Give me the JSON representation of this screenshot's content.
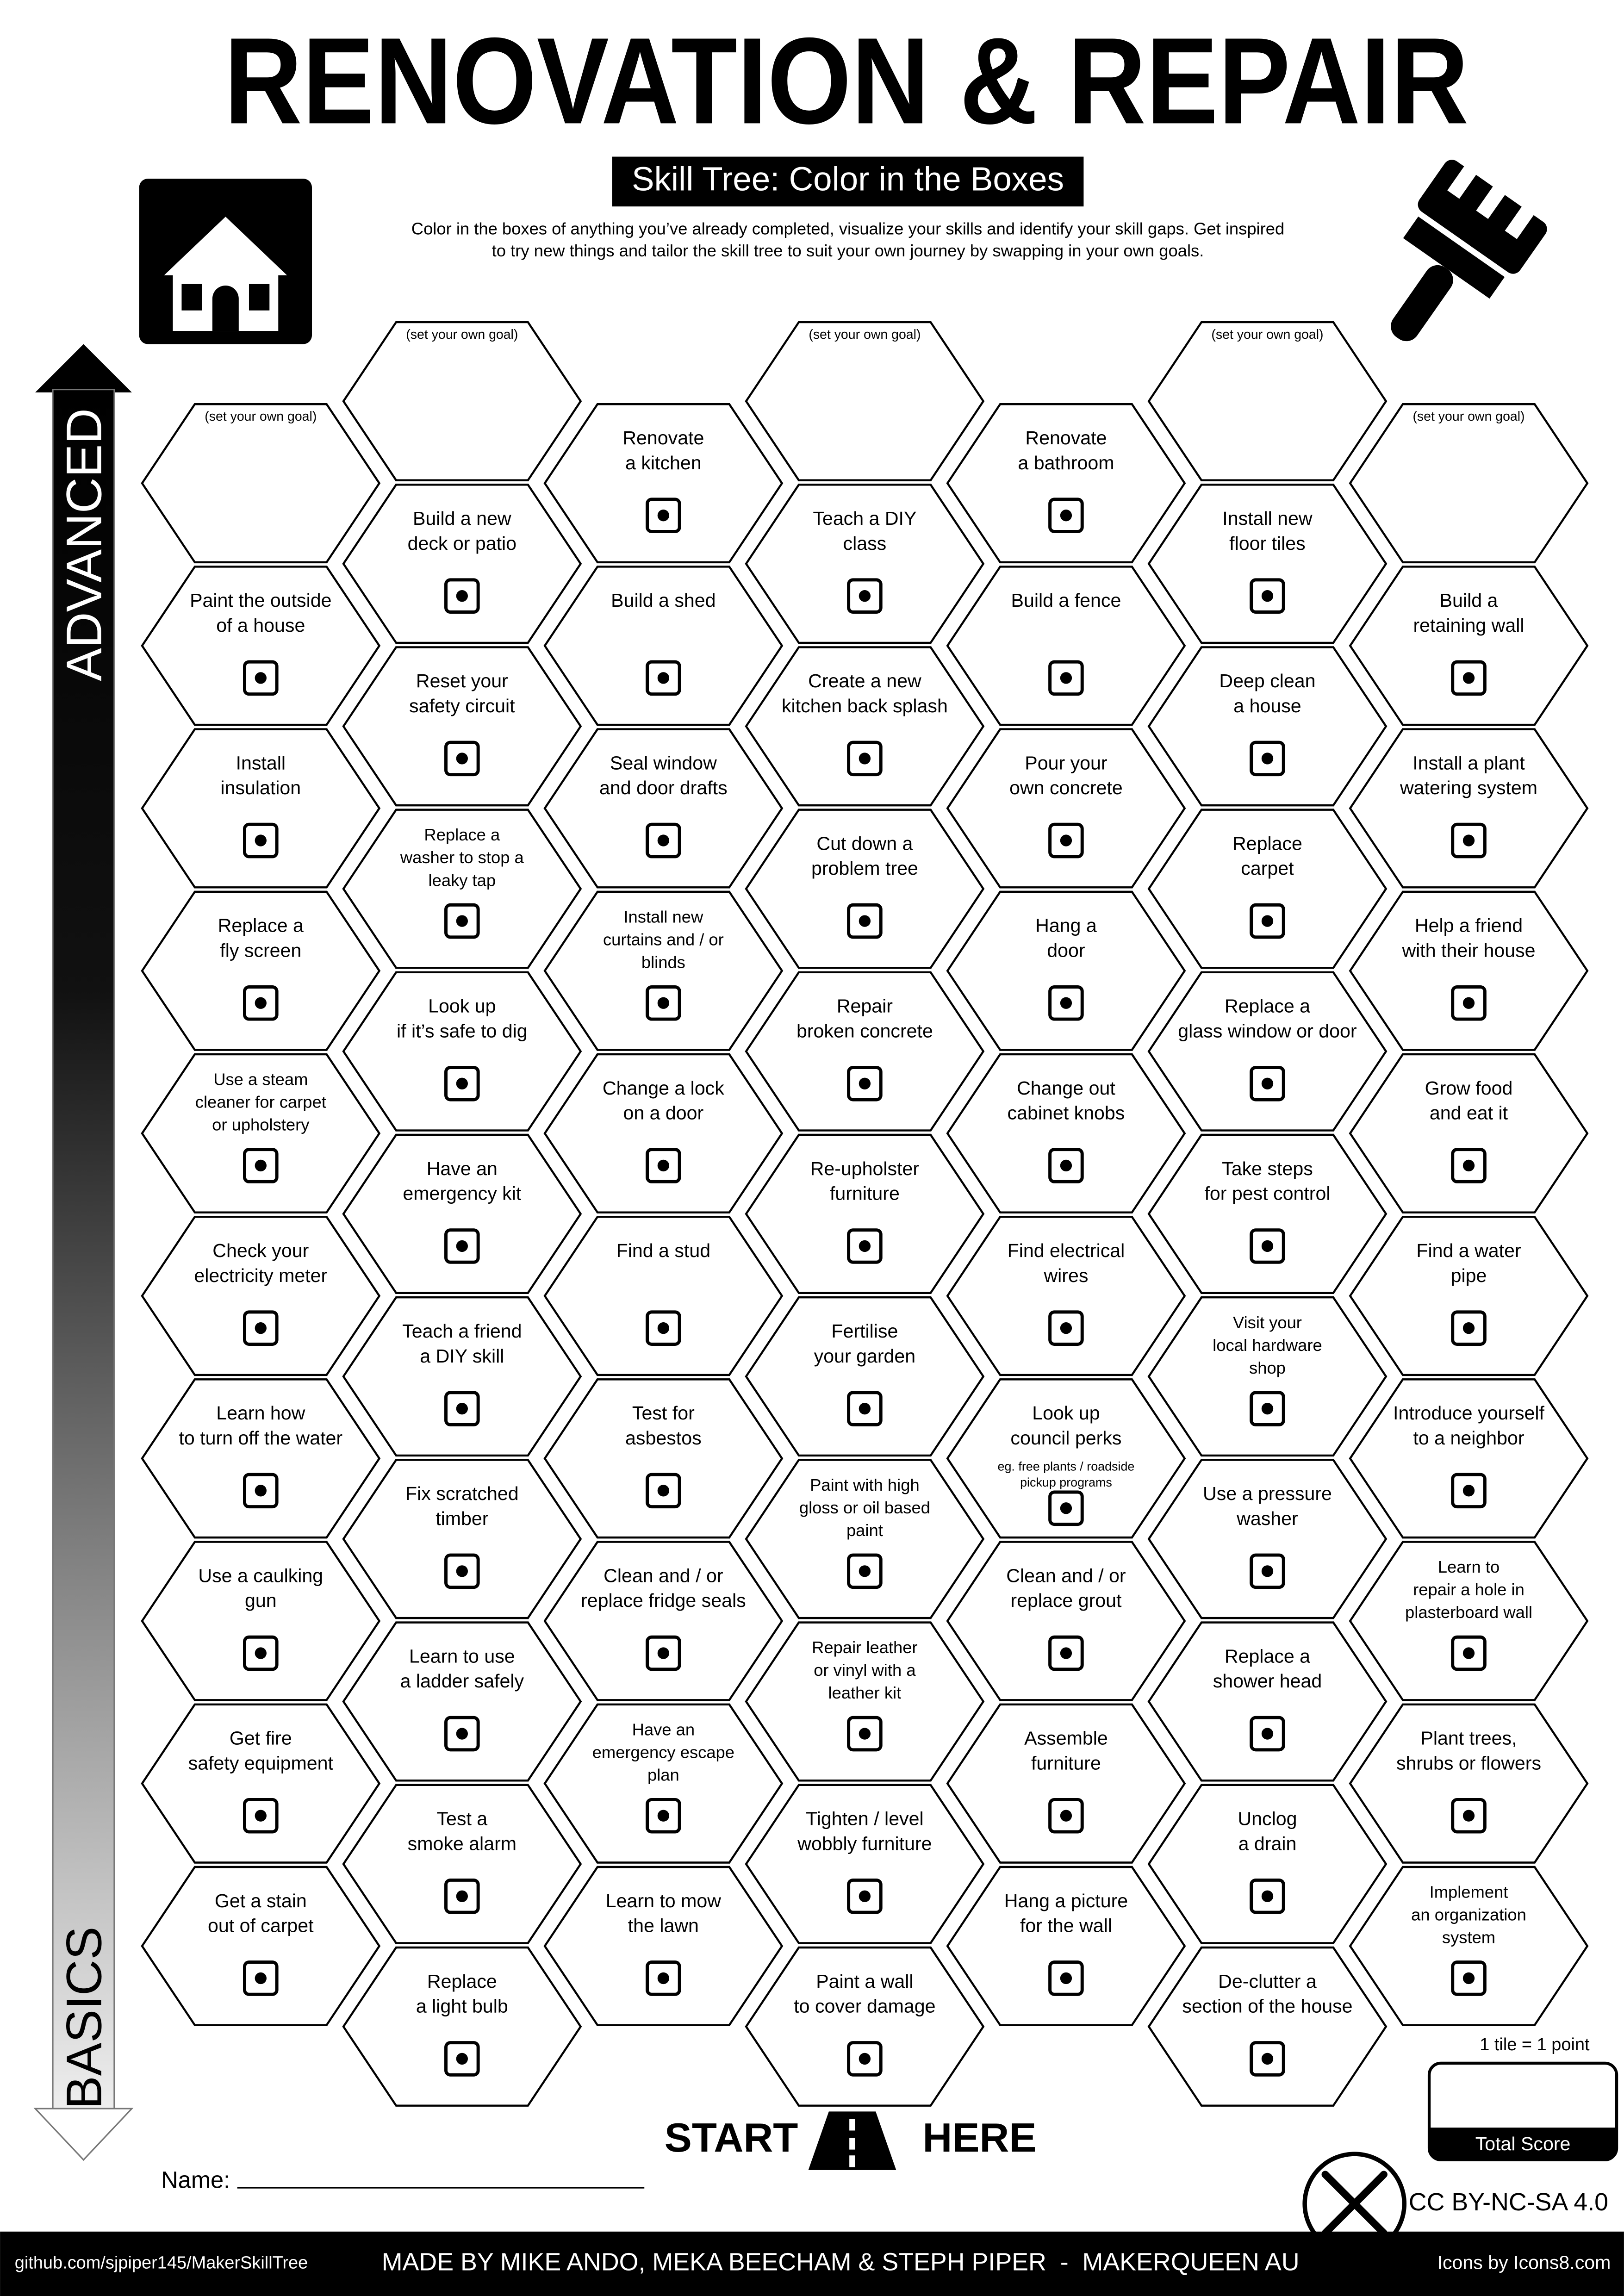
{
  "header": {
    "title": "RENOVATION & REPAIR",
    "subtitle": "Skill Tree: Color in the Boxes",
    "intro": [
      "Color in the boxes of anything you’ve already completed, visualize your skills and identify your skill gaps.  Get inspired",
      "to try new things and tailor the skill tree to suit your own journey by swapping in your own goals."
    ]
  },
  "axis": {
    "top": "ADVANCED",
    "bottom": "BASICS"
  },
  "columns": [
    [
      {
        "lines": [
          "(set your own goal)"
        ]
      },
      {
        "lines": [
          "Paint the outside",
          "of a house"
        ]
      },
      {
        "lines": [
          "Install",
          "insulation"
        ]
      },
      {
        "lines": [
          "Replace a",
          "fly screen"
        ]
      },
      {
        "lines": [
          "Use a steam",
          "cleaner for carpet",
          "or upholstery"
        ]
      },
      {
        "lines": [
          "Check your",
          "electricity meter"
        ]
      },
      {
        "lines": [
          "Learn how",
          "to turn off the water"
        ]
      },
      {
        "lines": [
          "Use a caulking",
          "gun"
        ]
      },
      {
        "lines": [
          "Get fire",
          "safety equipment"
        ]
      },
      {
        "lines": [
          "Get a stain",
          "out of carpet"
        ]
      }
    ],
    [
      {
        "lines": [
          "(set your own goal)"
        ]
      },
      {
        "lines": [
          "Build a new",
          "deck or patio"
        ]
      },
      {
        "lines": [
          "Reset your",
          "safety circuit"
        ]
      },
      {
        "lines": [
          "Replace a",
          "washer to stop a",
          "leaky tap"
        ]
      },
      {
        "lines": [
          "Look up",
          "if it’s safe to dig"
        ]
      },
      {
        "lines": [
          "Have an",
          "emergency kit"
        ]
      },
      {
        "lines": [
          "Teach a friend",
          "a DIY skill"
        ]
      },
      {
        "lines": [
          "Fix scratched",
          "timber"
        ]
      },
      {
        "lines": [
          "Learn to use",
          "a ladder safely"
        ]
      },
      {
        "lines": [
          "Test a",
          "smoke alarm"
        ]
      },
      {
        "lines": [
          "Replace",
          "a light bulb"
        ]
      }
    ],
    [
      {
        "lines": [
          "Renovate",
          "a kitchen"
        ]
      },
      {
        "lines": [
          "Build a shed"
        ]
      },
      {
        "lines": [
          "Seal window",
          "and door drafts"
        ]
      },
      {
        "lines": [
          "Install new",
          "curtains and / or",
          "blinds"
        ]
      },
      {
        "lines": [
          "Change a lock",
          "on a door"
        ]
      },
      {
        "lines": [
          "Find a stud"
        ]
      },
      {
        "lines": [
          "Test for",
          "asbestos"
        ]
      },
      {
        "lines": [
          "Clean and / or",
          "replace fridge seals"
        ]
      },
      {
        "lines": [
          "Have an",
          "emergency escape",
          "plan"
        ]
      },
      {
        "lines": [
          "Learn to mow",
          "the lawn"
        ]
      }
    ],
    [
      {
        "lines": [
          "(set your own goal)"
        ]
      },
      {
        "lines": [
          "Teach a DIY",
          "class"
        ]
      },
      {
        "lines": [
          "Create a new",
          "kitchen back splash"
        ]
      },
      {
        "lines": [
          "Cut down a",
          "problem tree"
        ]
      },
      {
        "lines": [
          "Repair",
          "broken concrete"
        ]
      },
      {
        "lines": [
          "Re-upholster",
          "furniture"
        ]
      },
      {
        "lines": [
          "Fertilise",
          "your garden"
        ]
      },
      {
        "lines": [
          "Paint with high",
          "gloss or oil based",
          "paint"
        ]
      },
      {
        "lines": [
          "Repair leather",
          "or vinyl with a",
          "leather kit"
        ]
      },
      {
        "lines": [
          "Tighten / level",
          "wobbly furniture"
        ]
      },
      {
        "lines": [
          "Paint a wall",
          "to cover damage"
        ]
      }
    ],
    [
      {
        "lines": [
          "Renovate",
          "a bathroom"
        ]
      },
      {
        "lines": [
          "Build a fence"
        ]
      },
      {
        "lines": [
          "Pour your",
          "own concrete"
        ]
      },
      {
        "lines": [
          "Hang a",
          "door"
        ]
      },
      {
        "lines": [
          "Change out",
          "cabinet knobs"
        ]
      },
      {
        "lines": [
          "Find electrical",
          "wires"
        ]
      },
      {
        "lines": [
          "Look up",
          "council perks"
        ],
        "note": [
          "eg. free plants / roadside",
          "pickup programs"
        ]
      },
      {
        "lines": [
          "Clean and / or",
          "replace grout"
        ]
      },
      {
        "lines": [
          "Assemble",
          "furniture"
        ]
      },
      {
        "lines": [
          "Hang a picture",
          "for the wall"
        ]
      }
    ],
    [
      {
        "lines": [
          "(set your own goal)"
        ]
      },
      {
        "lines": [
          "Install new",
          "floor tiles"
        ]
      },
      {
        "lines": [
          "Deep clean",
          "a house"
        ]
      },
      {
        "lines": [
          "Replace",
          "carpet"
        ]
      },
      {
        "lines": [
          "Replace a",
          "glass window or door"
        ]
      },
      {
        "lines": [
          "Take steps",
          "for pest control"
        ]
      },
      {
        "lines": [
          "Visit your",
          "local hardware",
          "shop"
        ]
      },
      {
        "lines": [
          "Use a pressure",
          "washer"
        ]
      },
      {
        "lines": [
          "Replace a",
          "shower head"
        ]
      },
      {
        "lines": [
          "Unclog",
          "a drain"
        ]
      },
      {
        "lines": [
          "De-clutter a",
          "section of the house"
        ]
      }
    ],
    [
      {
        "lines": [
          "(set your own goal)"
        ]
      },
      {
        "lines": [
          "Build a",
          "retaining wall"
        ]
      },
      {
        "lines": [
          "Install a plant",
          "watering system"
        ]
      },
      {
        "lines": [
          "Help a friend",
          "with their house"
        ]
      },
      {
        "lines": [
          "Grow food",
          "and eat it"
        ]
      },
      {
        "lines": [
          "Find a water",
          "pipe"
        ]
      },
      {
        "lines": [
          "Introduce yourself",
          "to a neighbor"
        ]
      },
      {
        "lines": [
          "Learn to",
          "repair a hole in",
          "plasterboard wall"
        ]
      },
      {
        "lines": [
          "Plant trees,",
          "shrubs or flowers"
        ]
      },
      {
        "lines": [
          "Implement",
          "an organization",
          "system"
        ]
      }
    ]
  ],
  "start": "START",
  "here": "HERE",
  "name_label": "Name:",
  "score": {
    "rule": "1 tile = 1 point",
    "label": "Total Score"
  },
  "license": "CC BY-NC-SA 4.0",
  "footer": {
    "link": "github.com/sjpiper145/MakerSkillTree",
    "credits": "MADE BY MIKE ANDO, MEKA BEECHAM & STEPH PIPER  -  MAKERQUEEN AU",
    "icons": "Icons by Icons8.com"
  }
}
